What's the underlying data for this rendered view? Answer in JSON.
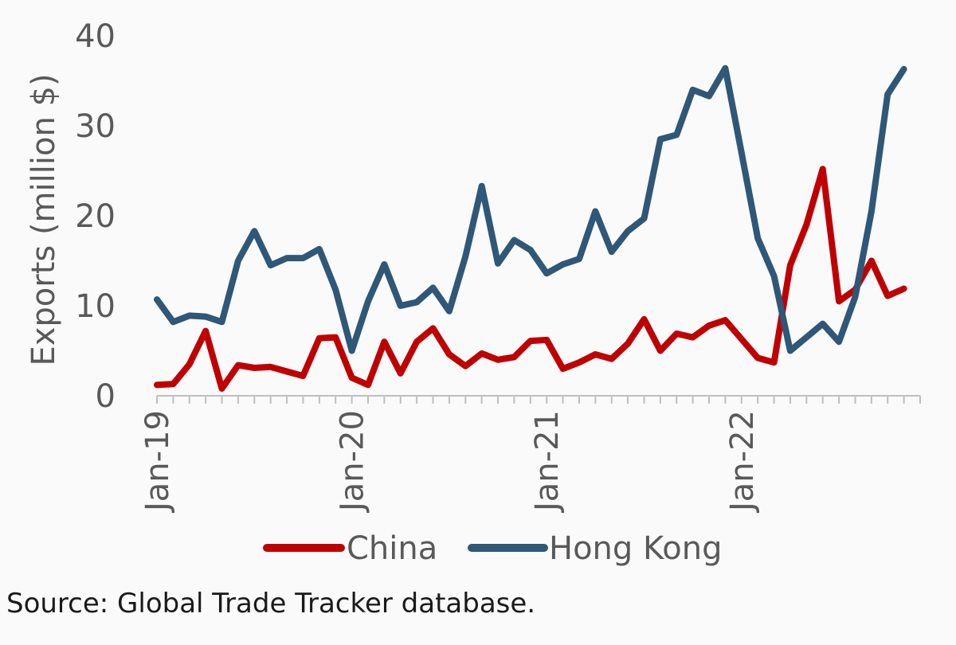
{
  "chart_data": {
    "type": "line",
    "title": "",
    "xlabel": "",
    "ylabel": "Exports (million $)",
    "ylim": [
      0,
      40
    ],
    "yticks": [
      0,
      10,
      20,
      30,
      40
    ],
    "xtick_labels": [
      "Jan-19",
      "Jan-20",
      "Jan-21",
      "Jan-22"
    ],
    "xtick_indices": [
      0,
      12,
      24,
      36
    ],
    "n_months": 47,
    "x": [
      "Jan-19",
      "Feb-19",
      "Mar-19",
      "Apr-19",
      "May-19",
      "Jun-19",
      "Jul-19",
      "Aug-19",
      "Sep-19",
      "Oct-19",
      "Nov-19",
      "Dec-19",
      "Jan-20",
      "Feb-20",
      "Mar-20",
      "Apr-20",
      "May-20",
      "Jun-20",
      "Jul-20",
      "Aug-20",
      "Sep-20",
      "Oct-20",
      "Nov-20",
      "Dec-20",
      "Jan-21",
      "Feb-21",
      "Mar-21",
      "Apr-21",
      "May-21",
      "Jun-21",
      "Jul-21",
      "Aug-21",
      "Sep-21",
      "Oct-21",
      "Nov-21",
      "Dec-21",
      "Jan-22",
      "Feb-22",
      "Mar-22",
      "Apr-22",
      "May-22",
      "Jun-22",
      "Jul-22",
      "Aug-22",
      "Sep-22",
      "Oct-22",
      "Nov-22"
    ],
    "series": [
      {
        "name": "China",
        "color": "#c00000",
        "values": [
          1.2,
          1.3,
          3.5,
          7.2,
          0.8,
          3.4,
          3.1,
          3.2,
          2.7,
          2.2,
          6.4,
          6.5,
          2.0,
          1.2,
          6.0,
          2.5,
          6.0,
          7.5,
          4.6,
          3.3,
          4.7,
          4.0,
          4.3,
          6.1,
          6.2,
          3.0,
          3.7,
          4.6,
          4.1,
          5.8,
          8.5,
          5.0,
          6.9,
          6.5,
          7.8,
          8.4,
          6.3,
          4.2,
          3.7,
          14.5,
          19.0,
          25.2,
          10.5,
          11.8,
          15.0,
          11.1,
          11.9
        ]
      },
      {
        "name": "Hong Kong",
        "color": "#2e5778",
        "values": [
          10.7,
          8.2,
          8.9,
          8.8,
          8.2,
          15.0,
          18.3,
          14.5,
          15.3,
          15.3,
          16.3,
          11.8,
          5.0,
          10.5,
          14.6,
          10.0,
          10.4,
          12.0,
          9.4,
          15.5,
          23.3,
          14.7,
          17.3,
          16.2,
          13.6,
          14.6,
          15.2,
          20.5,
          16.0,
          18.3,
          19.7,
          28.5,
          29.0,
          34.0,
          33.3,
          36.4,
          27.0,
          17.5,
          13.3,
          5.0,
          6.5,
          8.0,
          6.0,
          11.0,
          20.5,
          33.5,
          36.3
        ]
      }
    ],
    "legend": [
      "China",
      "Hong Kong"
    ],
    "legend_position": "bottom"
  },
  "source_text": "Source: Global Trade Tracker database."
}
